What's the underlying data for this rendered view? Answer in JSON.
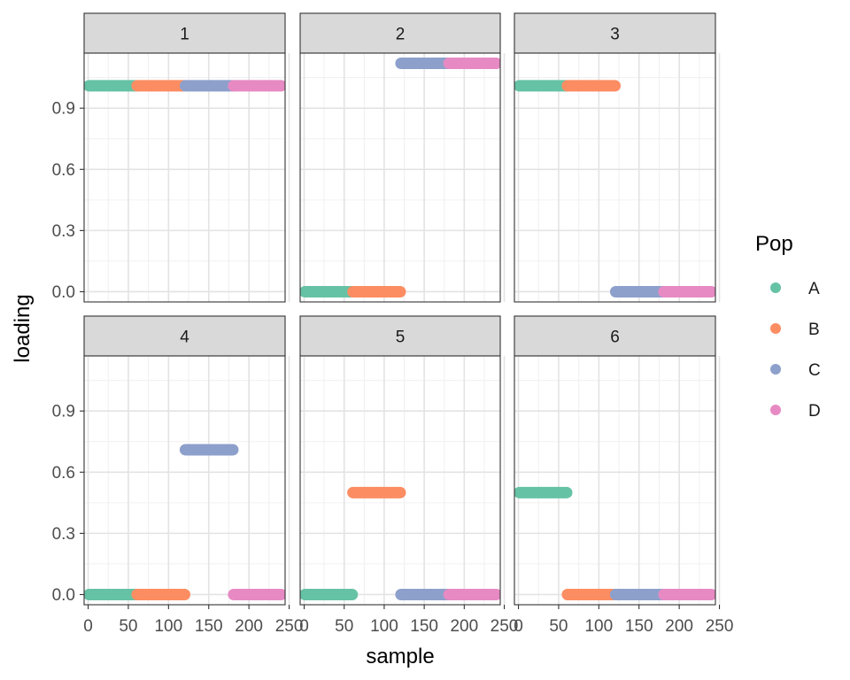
{
  "chart_data": {
    "type": "scatter",
    "facet_titles": [
      "1",
      "2",
      "3",
      "4",
      "5",
      "6"
    ],
    "xlabel": "sample",
    "ylabel": "loading",
    "xlim": [
      -5,
      245
    ],
    "ylim": [
      -0.05,
      1.17
    ],
    "x_ticks": [
      0,
      50,
      100,
      150,
      200,
      250
    ],
    "y_ticks": [
      0.0,
      0.3,
      0.6,
      0.9
    ],
    "x_tick_labels": [
      "0",
      "50",
      "100",
      "150",
      "200",
      "250"
    ],
    "y_tick_labels": [
      "0.0",
      "0.3",
      "0.6",
      "0.9"
    ],
    "legend": {
      "title": "Pop",
      "position": "right",
      "entries": [
        {
          "name": "A",
          "color": "#66C2A5"
        },
        {
          "name": "B",
          "color": "#FC8D62"
        },
        {
          "name": "C",
          "color": "#8DA0CB"
        },
        {
          "name": "D",
          "color": "#E78AC3"
        }
      ]
    },
    "grid": true,
    "pop_ranges": {
      "A": [
        1,
        60
      ],
      "B": [
        61,
        120
      ],
      "C": [
        121,
        180
      ],
      "D": [
        181,
        240
      ]
    },
    "loadings": [
      {
        "panel": "1",
        "A": 1.01,
        "B": 1.01,
        "C": 1.01,
        "D": 1.01
      },
      {
        "panel": "2",
        "A": 0.0,
        "B": 0.0,
        "C": 1.12,
        "D": 1.12
      },
      {
        "panel": "3",
        "A": 1.01,
        "B": 1.01,
        "C": 0.0,
        "D": 0.0
      },
      {
        "panel": "4",
        "A": 0.0,
        "B": 0.0,
        "C": 0.71,
        "D": 0.0
      },
      {
        "panel": "5",
        "A": 0.0,
        "B": 0.5,
        "C": 0.0,
        "D": 0.0
      },
      {
        "panel": "6",
        "A": 0.5,
        "B": 0.0,
        "C": 0.0,
        "D": 0.0
      }
    ]
  }
}
